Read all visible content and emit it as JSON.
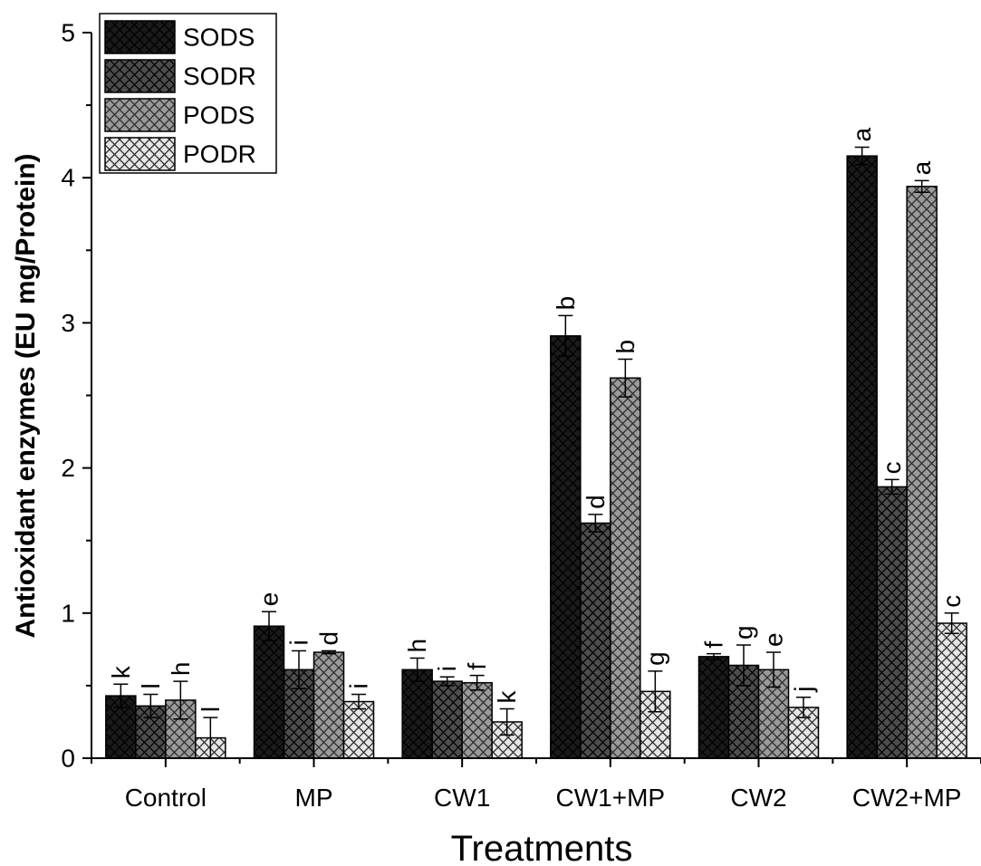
{
  "chart_data": {
    "type": "bar",
    "xlabel": "Treatments",
    "ylabel": "Antioxidant enzymes (EU mg/Protein)",
    "ylim": [
      0,
      5
    ],
    "yticks": [
      "0",
      "1",
      "2",
      "3",
      "4",
      "5"
    ],
    "categories": [
      "Control",
      "MP",
      "CW1",
      "CW1+MP",
      "CW2",
      "CW2+MP"
    ],
    "legend_position": "top-left",
    "grid": false,
    "series": [
      {
        "name": "SODS",
        "color": "#1a1a1a",
        "values": [
          0.43,
          0.91,
          0.61,
          2.91,
          0.7,
          4.15
        ],
        "errors": [
          0.08,
          0.1,
          0.08,
          0.14,
          0.02,
          0.06
        ],
        "labels": [
          "k",
          "e",
          "h",
          "b",
          "f",
          "a"
        ]
      },
      {
        "name": "SODR",
        "color": "#4d4d4d",
        "values": [
          0.36,
          0.61,
          0.53,
          1.62,
          0.64,
          1.87
        ],
        "errors": [
          0.08,
          0.13,
          0.03,
          0.06,
          0.14,
          0.05
        ],
        "labels": [
          "l",
          "i",
          "i",
          "d",
          "g",
          "c"
        ]
      },
      {
        "name": "PODS",
        "color": "#9a9a9a",
        "values": [
          0.4,
          0.73,
          0.52,
          2.62,
          0.61,
          3.94
        ],
        "errors": [
          0.13,
          0.01,
          0.05,
          0.13,
          0.12,
          0.04
        ],
        "labels": [
          "h",
          "d",
          "f",
          "b",
          "e",
          "a"
        ]
      },
      {
        "name": "PODR",
        "color": "#e6e6e6",
        "values": [
          0.14,
          0.39,
          0.25,
          0.46,
          0.35,
          0.93
        ],
        "errors": [
          0.14,
          0.05,
          0.09,
          0.14,
          0.07,
          0.07
        ],
        "labels": [
          "l",
          "i",
          "k",
          "g",
          "j",
          "c"
        ]
      }
    ]
  }
}
